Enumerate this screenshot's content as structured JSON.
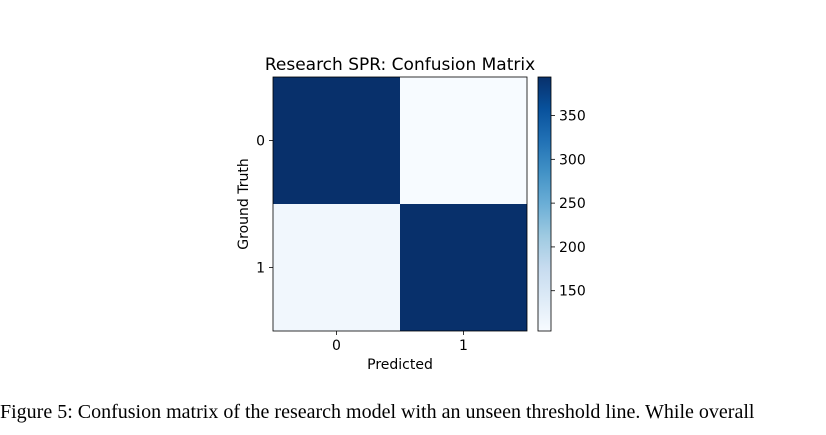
{
  "chart_data": {
    "type": "heatmap",
    "title": "Research SPR: Confusion Matrix",
    "xlabel": "Predicted",
    "ylabel": "Ground Truth",
    "x_categories": [
      "0",
      "1"
    ],
    "y_categories": [
      "0",
      "1"
    ],
    "matrix": [
      [
        394,
        104
      ],
      [
        112,
        394
      ]
    ],
    "colormap": "Blues",
    "colorbar": {
      "ticks": [
        150,
        200,
        250,
        300,
        350
      ],
      "range": [
        104,
        394
      ]
    }
  },
  "caption": {
    "text": "Figure 5: Confusion matrix of the research model with an unseen threshold line. While overall"
  }
}
